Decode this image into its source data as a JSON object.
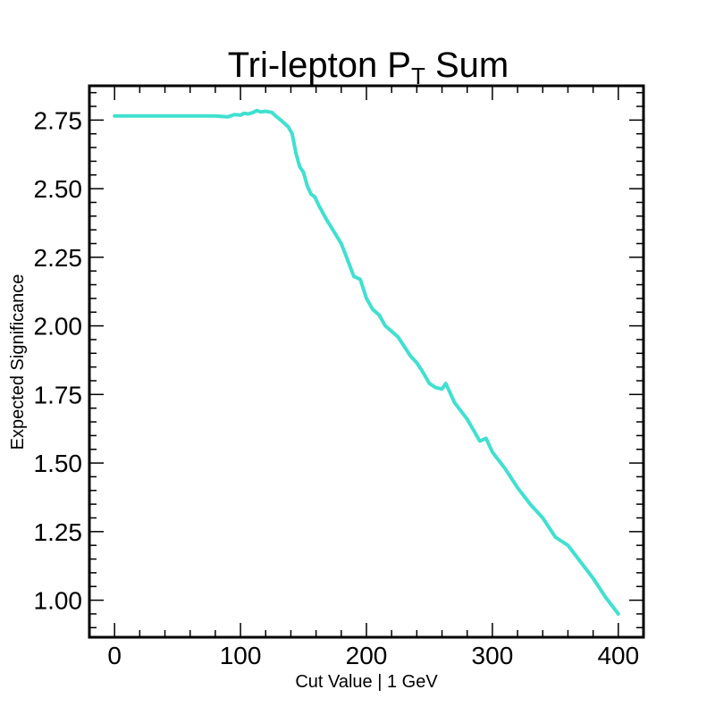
{
  "chart_data": {
    "type": "line",
    "title": "Tri-lepton P",
    "title_subscript": "T",
    "title_suffix": " Sum",
    "xlabel": "Cut Value | 1 GeV",
    "ylabel": "Expected Significance",
    "xlim": [
      -20,
      420
    ],
    "ylim": [
      0.865,
      2.875
    ],
    "xticks": [
      0,
      100,
      200,
      300,
      400
    ],
    "xtick_labels": [
      "0",
      "100",
      "200",
      "300",
      "400"
    ],
    "yticks": [
      1.0,
      1.25,
      1.5,
      1.75,
      2.0,
      2.25,
      2.5,
      2.75
    ],
    "ytick_labels": [
      "1.00",
      "1.25",
      "1.50",
      "1.75",
      "2.00",
      "2.25",
      "2.50",
      "2.75"
    ],
    "grid": false,
    "legend": "none",
    "line_color": "#40e0d0",
    "series": [
      {
        "x": [
          0,
          20,
          40,
          60,
          80,
          90,
          95,
          100,
          103,
          106,
          110,
          113,
          116,
          120,
          125,
          128,
          132,
          135,
          138,
          141,
          144,
          147,
          150,
          153,
          156,
          159,
          162,
          165,
          168,
          172,
          176,
          180,
          185,
          190,
          195,
          200,
          205,
          210,
          215,
          220,
          225,
          230,
          235,
          240,
          245,
          250,
          255,
          260,
          263,
          266,
          270,
          275,
          280,
          285,
          290,
          295,
          300,
          305,
          310,
          320,
          330,
          340,
          350,
          360,
          370,
          380,
          390,
          395,
          400
        ],
        "y": [
          2.765,
          2.765,
          2.765,
          2.765,
          2.765,
          2.762,
          2.77,
          2.768,
          2.775,
          2.772,
          2.778,
          2.785,
          2.78,
          2.782,
          2.778,
          2.765,
          2.75,
          2.738,
          2.725,
          2.7,
          2.63,
          2.58,
          2.56,
          2.51,
          2.48,
          2.47,
          2.44,
          2.415,
          2.39,
          2.36,
          2.33,
          2.3,
          2.24,
          2.18,
          2.17,
          2.1,
          2.06,
          2.04,
          2.0,
          1.98,
          1.96,
          1.925,
          1.89,
          1.865,
          1.83,
          1.79,
          1.775,
          1.77,
          1.79,
          1.76,
          1.72,
          1.69,
          1.66,
          1.62,
          1.58,
          1.59,
          1.54,
          1.51,
          1.48,
          1.41,
          1.35,
          1.3,
          1.23,
          1.2,
          1.14,
          1.08,
          1.01,
          0.98,
          0.95
        ]
      }
    ]
  }
}
